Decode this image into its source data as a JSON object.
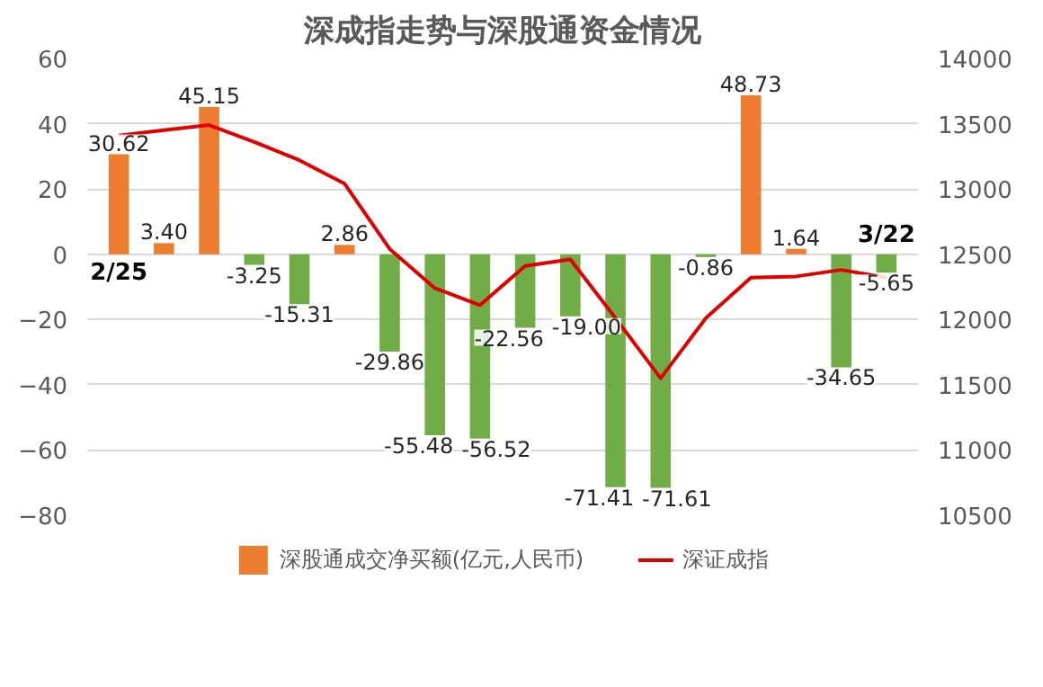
{
  "chart_data": {
    "type": "bar",
    "title": "深成指走势与深股通资金情况",
    "categories": [
      "2/25",
      null,
      null,
      null,
      null,
      null,
      null,
      null,
      null,
      null,
      null,
      null,
      null,
      null,
      null,
      null,
      null,
      "3/22"
    ],
    "series": [
      {
        "name": "深股通成交净买额(亿元,人民币)",
        "color": "#ed7d31",
        "colors": [
          "#ed7d31",
          "#ed7d31",
          "#ed7d31",
          "#70ad47",
          "#70ad47",
          "#ed7d31",
          "#70ad47",
          "#70ad47",
          "#70ad47",
          "#70ad47",
          "#70ad47",
          "#70ad47",
          "#70ad47",
          "#70ad47",
          "#ed7d31",
          "#ed7d31",
          "#70ad47",
          "#70ad47"
        ],
        "values": [
          30.62,
          3.4,
          45.15,
          -3.25,
          -15.31,
          2.86,
          -29.86,
          -55.48,
          -56.52,
          -22.56,
          -19.0,
          -71.41,
          -71.61,
          -0.86,
          48.73,
          1.64,
          -34.65,
          -5.65
        ],
        "value_labels": [
          "30.62",
          "3.40",
          "45.15",
          "-3.25",
          "-15.31",
          "2.86",
          "-29.86",
          "-55.48",
          "-56.52",
          "-22.56",
          "-19.00",
          "-71.41",
          "-71.61",
          "-0.86",
          "48.73",
          "1.64",
          "-34.65",
          "-5.65"
        ]
      },
      {
        "name": "深证成指",
        "type": "line",
        "axis": "y2",
        "color": "#e00000",
        "values": [
          13410,
          13450,
          13490,
          13360,
          13220,
          13040,
          12540,
          12240,
          12110,
          12410,
          12460,
          12010,
          11550,
          12010,
          12320,
          12330,
          12380,
          12320
        ]
      }
    ],
    "ylim": [
      -80,
      60
    ],
    "yticks": [
      -80,
      -60,
      -40,
      -20,
      0,
      20,
      40,
      60
    ],
    "y2lim": [
      10500,
      14000
    ],
    "y2ticks": [
      10500,
      11000,
      11500,
      12000,
      12500,
      13000,
      13500,
      14000
    ],
    "grid": "y",
    "legend": "bottom"
  }
}
